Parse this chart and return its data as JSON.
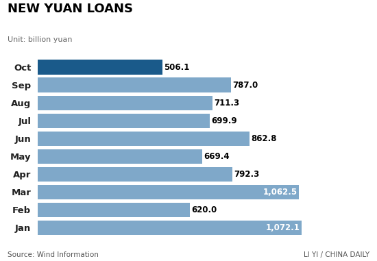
{
  "title": "NEW YUAN LOANS",
  "subtitle": "Unit: billion yuan",
  "source_left": "Source: Wind Information",
  "source_right": "LI YI / CHINA DAILY",
  "categories": [
    "Oct",
    "Sep",
    "Aug",
    "Jul",
    "Jun",
    "May",
    "Apr",
    "Mar",
    "Feb",
    "Jan"
  ],
  "values": [
    506.1,
    787.0,
    711.3,
    699.9,
    862.8,
    669.4,
    792.3,
    1062.5,
    620.0,
    1072.1
  ],
  "labels": [
    "506.1",
    "787.0",
    "711.3",
    "699.9",
    "862.8",
    "669.4",
    "792.3",
    "1,062.5",
    "620.0",
    "1,072.1"
  ],
  "bar_color_default": "#7fa8c9",
  "bar_color_oct": "#1a5a8a",
  "label_color_default": "#000000",
  "label_color_inside": "#ffffff",
  "inside_label_threshold": 900,
  "background_color": "#ffffff",
  "xlim": [
    0,
    1150
  ]
}
